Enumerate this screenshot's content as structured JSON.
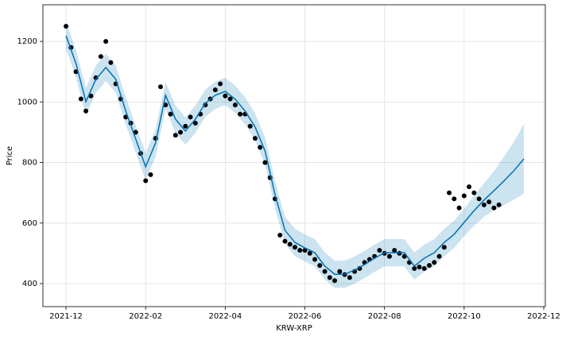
{
  "chart_data": {
    "type": "line",
    "xlabel": "KRW-XRP",
    "ylabel": "Price",
    "xlim": [
      -0.58,
      12.04
    ],
    "ylim": [
      324,
      1321
    ],
    "xticks": [
      {
        "value": 0,
        "label": "2021-12"
      },
      {
        "value": 2,
        "label": "2022-02"
      },
      {
        "value": 4,
        "label": "2022-04"
      },
      {
        "value": 6,
        "label": "2022-06"
      },
      {
        "value": 8,
        "label": "2022-08"
      },
      {
        "value": 10,
        "label": "2022-10"
      },
      {
        "value": 12,
        "label": "2022-12"
      }
    ],
    "yticks": [
      400,
      600,
      800,
      1000,
      1200
    ],
    "grid": true,
    "x": [
      0,
      0.25,
      0.5,
      0.75,
      1,
      1.25,
      1.5,
      1.75,
      2,
      2.25,
      2.5,
      2.75,
      3,
      3.25,
      3.5,
      3.75,
      4,
      4.25,
      4.5,
      4.75,
      5,
      5.25,
      5.5,
      5.75,
      6,
      6.25,
      6.5,
      6.75,
      7,
      7.25,
      7.5,
      7.75,
      8,
      8.25,
      8.5,
      8.75,
      9,
      9.25,
      9.5,
      9.75,
      10,
      10.25,
      10.5,
      10.75,
      11,
      11.25,
      11.5
    ],
    "forecast": {
      "color": "#0072b2",
      "values": [
        1219,
        1127,
        1001,
        1075,
        1114,
        1075,
        970,
        878,
        786,
        865,
        1022,
        943,
        904,
        943,
        996,
        1022,
        1035,
        1009,
        970,
        917,
        838,
        694,
        576,
        536,
        518,
        502,
        458,
        431,
        431,
        445,
        463,
        484,
        502,
        502,
        502,
        458,
        484,
        502,
        536,
        563,
        602,
        641,
        676,
        707,
        739,
        773,
        812
      ]
    },
    "interval": {
      "color": "#0072b2",
      "lower": [
        1174,
        1082,
        956,
        1030,
        1069,
        1030,
        925,
        833,
        741,
        820,
        977,
        898,
        859,
        898,
        951,
        977,
        990,
        964,
        925,
        872,
        793,
        649,
        531,
        491,
        473,
        457,
        413,
        386,
        386,
        400,
        418,
        439,
        457,
        457,
        457,
        413,
        439,
        457,
        491,
        518,
        557,
        591,
        621,
        642,
        659,
        678,
        697
      ],
      "upper": [
        1264,
        1172,
        1046,
        1120,
        1159,
        1120,
        1015,
        923,
        831,
        910,
        1067,
        988,
        949,
        988,
        1041,
        1067,
        1080,
        1054,
        1015,
        962,
        883,
        739,
        621,
        581,
        563,
        547,
        503,
        476,
        476,
        490,
        508,
        529,
        547,
        547,
        547,
        503,
        529,
        547,
        581,
        608,
        647,
        691,
        731,
        772,
        819,
        868,
        927
      ]
    },
    "observed": {
      "color": "#000000",
      "x": [
        0,
        0.125,
        0.25,
        0.375,
        0.5,
        0.625,
        0.75,
        0.875,
        1,
        1.125,
        1.25,
        1.375,
        1.5,
        1.625,
        1.75,
        1.875,
        2,
        2.125,
        2.25,
        2.375,
        2.5,
        2.625,
        2.75,
        2.875,
        3,
        3.125,
        3.25,
        3.375,
        3.5,
        3.625,
        3.75,
        3.875,
        4,
        4.125,
        4.25,
        4.375,
        4.5,
        4.625,
        4.75,
        4.875,
        5,
        5.125,
        5.25,
        5.375,
        5.5,
        5.625,
        5.75,
        5.875,
        6,
        6.125,
        6.25,
        6.375,
        6.5,
        6.625,
        6.75,
        6.875,
        7,
        7.125,
        7.25,
        7.375,
        7.5,
        7.625,
        7.75,
        7.875,
        8,
        8.125,
        8.25,
        8.375,
        8.5,
        8.625,
        8.75,
        8.875,
        9,
        9.125,
        9.25,
        9.375,
        9.5,
        9.625,
        9.75,
        9.875,
        10,
        10.125,
        10.25,
        10.375,
        10.5,
        10.625,
        10.75,
        10.875
      ],
      "values": [
        1250,
        1180,
        1100,
        1010,
        970,
        1020,
        1080,
        1150,
        1200,
        1130,
        1060,
        1010,
        950,
        930,
        900,
        830,
        740,
        760,
        880,
        1050,
        990,
        960,
        890,
        900,
        920,
        950,
        930,
        960,
        990,
        1010,
        1040,
        1060,
        1020,
        1010,
        990,
        960,
        960,
        920,
        880,
        850,
        800,
        750,
        680,
        560,
        540,
        530,
        520,
        510,
        510,
        500,
        480,
        460,
        440,
        420,
        410,
        440,
        430,
        420,
        440,
        450,
        470,
        480,
        490,
        510,
        500,
        490,
        510,
        500,
        490,
        470,
        450,
        455,
        450,
        460,
        470,
        490,
        520,
        700,
        680,
        650,
        690,
        720,
        700,
        680,
        660,
        670,
        650,
        660
      ]
    }
  }
}
